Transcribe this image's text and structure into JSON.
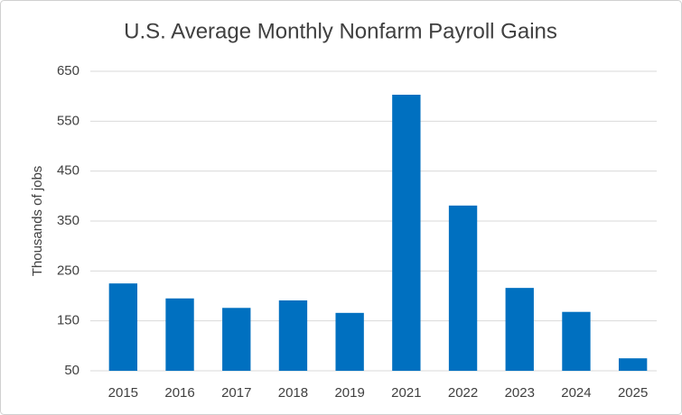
{
  "chart_data": {
    "type": "bar",
    "title": "U.S. Average Monthly Nonfarm Payroll Gains",
    "y_label": "Thousands of jobs",
    "categories": [
      "2015",
      "2016",
      "2017",
      "2018",
      "2019",
      "2021",
      "2022",
      "2023",
      "2024",
      "2025"
    ],
    "values": [
      225,
      195,
      176,
      191,
      166,
      603,
      381,
      216,
      168,
      75
    ],
    "color": "#0070c0",
    "ylim": [
      50,
      650
    ],
    "yticks": [
      50,
      150,
      250,
      350,
      450,
      550,
      650
    ],
    "grid": true
  }
}
